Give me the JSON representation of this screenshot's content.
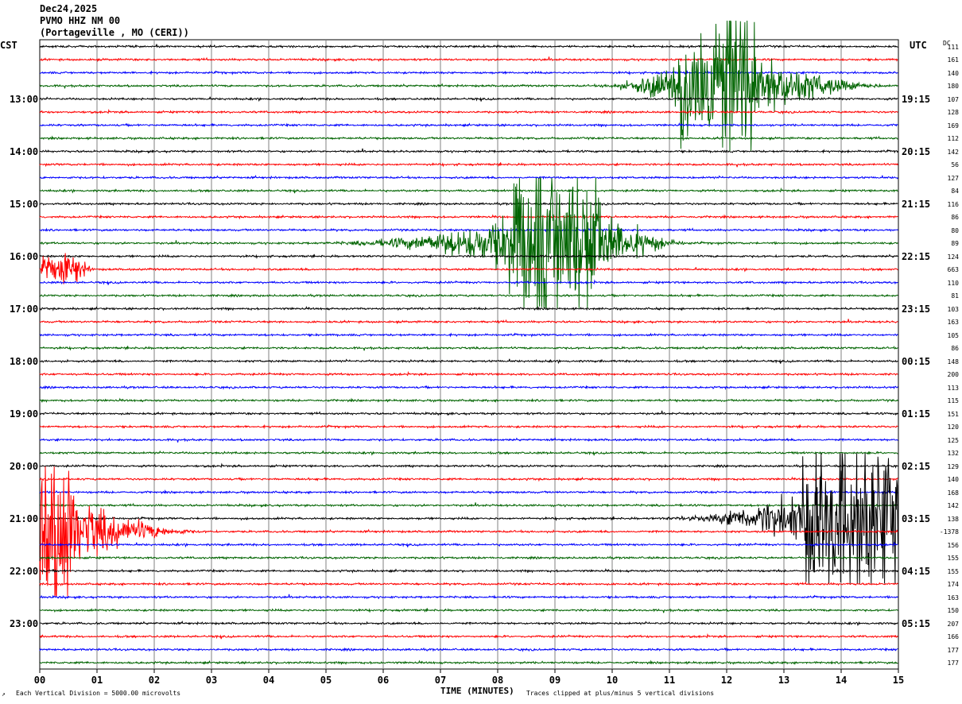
{
  "header": {
    "date": "Dec24,2025",
    "station": "PVMO HHZ NM 00",
    "location": "(Portageville , MO (CERI))"
  },
  "labels": {
    "left_tz": "CST",
    "right_tz": "UTC",
    "dc_header": "DC"
  },
  "footer": {
    "scale_note": "Each Vertical Division = 5000.00 microvolts",
    "clip_note": "Traces clipped at plus/minus 5 vertical divisions",
    "corner_mark": "↗"
  },
  "colors": {
    "trace_cycle": [
      "#000000",
      "#ff0000",
      "#0000ff",
      "#006400"
    ],
    "grid": "#808080"
  },
  "chart_data": {
    "type": "line",
    "title": "PVMO HHZ NM 00",
    "xlabel": "TIME (MINUTES)",
    "ylabel": "",
    "xlim": [
      0,
      15
    ],
    "x_ticks": [
      "00",
      "01",
      "02",
      "03",
      "04",
      "05",
      "06",
      "07",
      "08",
      "09",
      "10",
      "11",
      "12",
      "13",
      "14",
      "15"
    ],
    "traces_per_hour": 4,
    "trace_count": 48,
    "left_hour_labels": [
      "13:00",
      "14:00",
      "15:00",
      "16:00",
      "17:00",
      "18:00",
      "19:00",
      "20:00",
      "21:00",
      "22:00",
      "23:00"
    ],
    "right_hour_labels": [
      "19:15",
      "20:15",
      "21:15",
      "22:15",
      "23:15",
      "00:15",
      "01:15",
      "02:15",
      "03:15",
      "04:15",
      "05:15"
    ],
    "dc_offsets": [
      111,
      161,
      140,
      180,
      107,
      128,
      169,
      112,
      142,
      56,
      127,
      84,
      116,
      86,
      80,
      89,
      124,
      663,
      110,
      81,
      103,
      163,
      105,
      86,
      148,
      200,
      113,
      115,
      151,
      120,
      125,
      132,
      129,
      140,
      168,
      142,
      138,
      -1378,
      156,
      155,
      155,
      174,
      163,
      150,
      207,
      166,
      177,
      177
    ],
    "events": [
      {
        "trace": 3,
        "start_min": 9.5,
        "peak_start_min": 11.2,
        "peak_end_min": 12.5,
        "end_min": 15.0,
        "clipped": true
      },
      {
        "trace": 15,
        "start_min": 4.5,
        "peak_start_min": 8.2,
        "peak_end_min": 9.8,
        "end_min": 11.5,
        "clipped": true
      },
      {
        "trace": 17,
        "start_min": 0.0,
        "peak_start_min": 0.05,
        "peak_end_min": 0.7,
        "end_min": 1.0,
        "clipped": false
      },
      {
        "trace": 36,
        "start_min": 10.5,
        "peak_start_min": 13.3,
        "peak_end_min": 15.0,
        "end_min": 15.0,
        "clipped": true
      },
      {
        "trace": 37,
        "start_min": 0.0,
        "peak_start_min": 0.0,
        "peak_end_min": 0.6,
        "end_min": 3.0,
        "clipped": true
      }
    ]
  }
}
